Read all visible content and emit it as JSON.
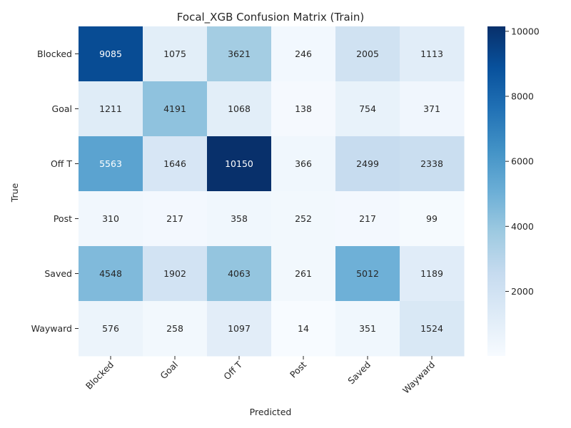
{
  "chart_data": {
    "type": "heatmap",
    "title": "Focal_XGB Confusion Matrix (Train)",
    "xlabel": "Predicted",
    "ylabel": "True",
    "x_categories": [
      "Blocked",
      "Goal",
      "Off T",
      "Post",
      "Saved",
      "Wayward"
    ],
    "y_categories": [
      "Blocked",
      "Goal",
      "Off T",
      "Post",
      "Saved",
      "Wayward"
    ],
    "values": [
      [
        9085,
        1075,
        3621,
        246,
        2005,
        1113
      ],
      [
        1211,
        4191,
        1068,
        138,
        754,
        371
      ],
      [
        5563,
        1646,
        10150,
        366,
        2499,
        2338
      ],
      [
        310,
        217,
        358,
        252,
        217,
        99
      ],
      [
        4548,
        1902,
        4063,
        261,
        5012,
        1189
      ],
      [
        576,
        258,
        1097,
        14,
        351,
        1524
      ]
    ],
    "colormap": "Blues",
    "colorbar": {
      "min": 14,
      "max": 10150,
      "ticks": [
        2000,
        4000,
        6000,
        8000,
        10000
      ]
    },
    "annotation_colors": {
      "dark": "#262626",
      "light": "#ffffff"
    }
  }
}
